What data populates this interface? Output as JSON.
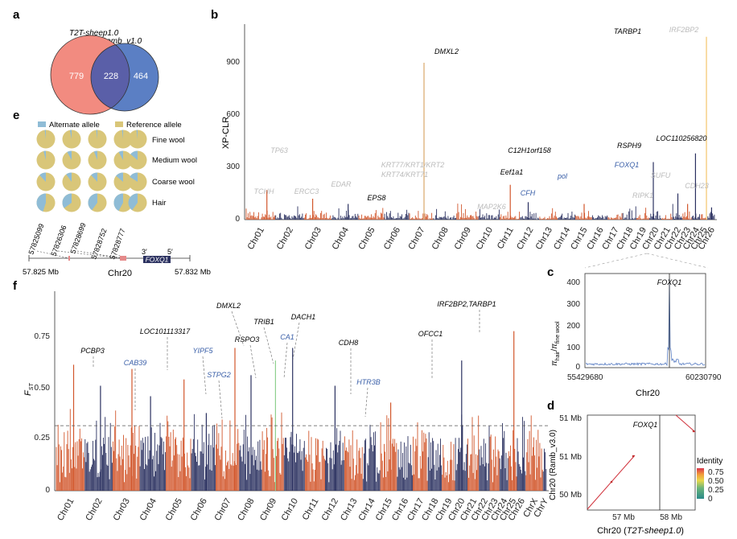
{
  "panels": {
    "a": {
      "letter": "a",
      "set1_name": "T2T-sheep1.0",
      "set2_name": "Ramb_v1.0",
      "only1": "779",
      "both": "228",
      "only2": "464",
      "colors": {
        "set1": "#f28b80",
        "set2": "#5b7fc4",
        "overlap": "#5a5fa8"
      }
    },
    "b": {
      "letter": "b",
      "ylabel": "XP-CLR",
      "yticks": [
        "0",
        "300",
        "600",
        "900"
      ],
      "chromosomes": [
        "Chr01",
        "Chr02",
        "Chr03",
        "Chr04",
        "Chr05",
        "Chr06",
        "Chr07",
        "Chr08",
        "Chr09",
        "Chr10",
        "Chr11",
        "Chr12",
        "Chr13",
        "Chr14",
        "Chr15",
        "Chr16",
        "Chr17",
        "Chr18",
        "Chr19",
        "Chr20",
        "Chr21",
        "Chr22",
        "Chr23",
        "Chr24",
        "Chr25",
        "Chr26"
      ],
      "genes_dark": [
        "DMXL2",
        "TARBP1",
        "C12H1orf158",
        "RSPH9",
        "LOC110256820",
        "Eef1a1",
        "EPS8"
      ],
      "genes_blue": [
        "FOXQ1",
        "pol",
        "CFH"
      ],
      "genes_grey": [
        "IRF2BP2",
        "TP63",
        "TCHH",
        "ERCC3",
        "EDAR",
        "KRT77/KRT1/KRT2",
        "KRT74/KRT71",
        "SUFU",
        "RIPK1",
        "CDH23",
        "MAP2K6"
      ],
      "colors": {
        "odd": "#d2572c",
        "even": "#2b3160"
      }
    },
    "c": {
      "letter": "c",
      "gene": "FOXQ1",
      "yticks": [
        "0",
        "100",
        "200",
        "300",
        "400"
      ],
      "ylabel_main": "π",
      "ylabel_num": "hair",
      "ylabel_den": "fine wool",
      "x_start": "55429680",
      "x_end": "60230790",
      "xlabel": "Chr20"
    },
    "d": {
      "letter": "d",
      "gene": "FOXQ1",
      "yticks": [
        "51 Mb",
        "51 Mb",
        "50 Mb"
      ],
      "xticks": [
        "57 Mb",
        "58 Mb"
      ],
      "ylabel": "Chr20 (Ramb_v3.0)",
      "xlabel_prefix": "Chr20 (",
      "xlabel_assembly": "T2T-sheep1.0",
      "xlabel_suffix": ")",
      "legend_title": "Identity",
      "legend_ticks": [
        "0.75",
        "0.50",
        "0.25",
        "0"
      ]
    },
    "e": {
      "letter": "e",
      "legend_alt": "Alternate allele",
      "legend_ref": "Reference allele",
      "groups": [
        "Fine wool",
        "Medium wool",
        "Coarse wool",
        "Hair"
      ],
      "alt_fractions": [
        [
          0.02,
          0.03,
          0.02,
          0.02,
          0.02
        ],
        [
          0.04,
          0.08,
          0.06,
          0.08,
          0.14
        ],
        [
          0.12,
          0.1,
          0.12,
          0.14,
          0.16
        ],
        [
          0.45,
          0.35,
          0.4,
          0.42,
          0.4
        ]
      ],
      "snps": [
        "57825099",
        "57826306",
        "57828699",
        "57828752",
        "57828777"
      ],
      "strand_3": "3′",
      "strand_5": "5′",
      "gene": "FOXQ1",
      "left_coord": "57.825 Mb",
      "right_coord": "57.832 Mb",
      "chrom": "Chr20",
      "colors": {
        "alt": "#8fbcd6",
        "ref": "#d9c679",
        "gene": "#2b3160"
      }
    },
    "f": {
      "letter": "f",
      "ylabel": "F",
      "ylabel_sub": "ST",
      "yticks": [
        "0",
        "0.25",
        "0.50",
        "0.75"
      ],
      "threshold": 0.31,
      "chromosomes": [
        "Chr01",
        "Chr02",
        "Chr03",
        "Chr04",
        "Chr05",
        "Chr06",
        "Chr07",
        "Chr08",
        "Chr09",
        "Chr10",
        "Chr11",
        "Chr12",
        "Chr13",
        "Chr14",
        "Chr15",
        "Chr16",
        "Chr17",
        "Chr18",
        "Chr19",
        "Chr20",
        "Chr21",
        "Chr22",
        "Chr23",
        "Chr24",
        "Chr25",
        "Chr26",
        "ChrX",
        "ChrY"
      ],
      "genes_dark": [
        "PCBP3",
        "LOC101113317",
        "DMXL2",
        "RSPO3",
        "TRIB1",
        "DACH1",
        "CDH8",
        "OFCC1",
        "IRF2BP2,TARBP1"
      ],
      "genes_blue": [
        "CAB39",
        "YIPF5",
        "STPG2",
        "CA1",
        "HTR3B"
      ],
      "colors": {
        "odd": "#d2572c",
        "even": "#2b3160"
      }
    }
  }
}
